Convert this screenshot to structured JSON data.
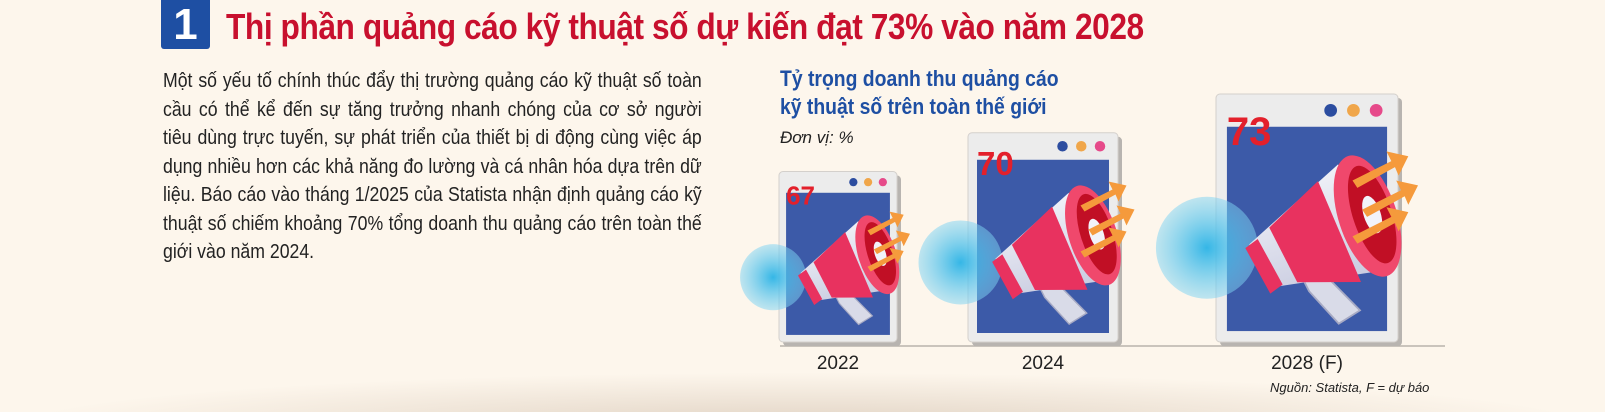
{
  "section": {
    "number": "1",
    "headline": "Thị phần quảng cáo kỹ thuật số dự kiến đạt 73% vào năm 2028"
  },
  "body_text": "Một số yếu tố chính thúc đẩy thị trường quảng cáo kỹ thuật số toàn cầu có thể kể đến sự tăng trưởng nhanh chóng của cơ sở người tiêu dùng trực tuyến, sự phát triển của thiết bị di động cùng việc áp dụng nhiều hơn các khả năng đo lường và cá nhân hóa dựa trên dữ liệu. Báo cáo vào tháng 1/2025 của Statista nhận định quảng cáo kỹ thuật số chiếm khoảng 70% tổng doanh thu quảng cáo trên toàn thế giới vào năm 2024.",
  "chart_data": {
    "type": "bar",
    "title_line1": "Tỷ trọng doanh thu quảng cáo",
    "title_line2": "kỹ thuật số trên toàn thế giới",
    "unit": "Đơn vị: %",
    "categories": [
      "2022",
      "2024",
      "2028 (F)"
    ],
    "values": [
      67,
      70,
      73
    ],
    "source": "Nguồn: Statista, F = dự báo"
  },
  "colors": {
    "headline": "#c8102e",
    "accent_blue": "#1e4fa3",
    "value_red": "#e3202b",
    "megaphone_pink": "#e8325f",
    "arrow_orange": "#f59a3c"
  }
}
